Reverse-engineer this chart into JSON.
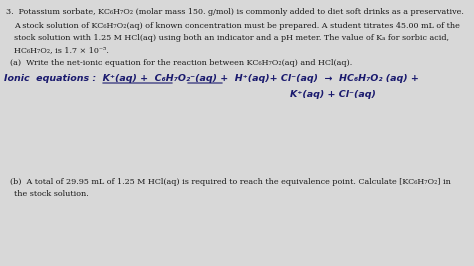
{
  "background_color": "#d8d8d8",
  "text_color": "#1a1a1a",
  "handwritten_color": "#1a1a6e",
  "title_line": "3.  Potassium sorbate, KC₆H₇O₂ (molar mass 150. g/mol) is commonly added to diet soft drinks as a preservative.",
  "body_lines": [
    "A stock solution of KC₆H₇O₂(aq) of known concentration must be prepared. A student titrates 45.00 mL of the",
    "stock solution with 1.25 M HCl(aq) using both an indicator and a pH meter. The value of Kₐ for sorbic acid,",
    "HC₆H₇O₂, is 1.7 × 10⁻⁵."
  ],
  "part_a_label": "(a)  Write the net-ionic equation for the reaction between KC₆H₇O₂(aq) and HCl(aq).",
  "ionic_line1": "Ionic  equations :  K⁺(aq) +  C₆H₇O₂⁻(aq) +  H⁺(aq)+ Cl⁻(aq)  →  HC₆H₇O₂ (aq) +",
  "ionic_line2": "K⁺(aq) + Cl⁻(aq)",
  "part_b_label": "(b)  A total of 29.95 mL of 1.25 M HCl(aq) is required to reach the equivalence point. Calculate [KC₆H₇O₂] in",
  "part_b_line2": "the stock solution.",
  "font_size_body": 5.8,
  "font_size_handwritten": 6.8,
  "figsize": [
    4.74,
    2.66
  ],
  "dpi": 100
}
